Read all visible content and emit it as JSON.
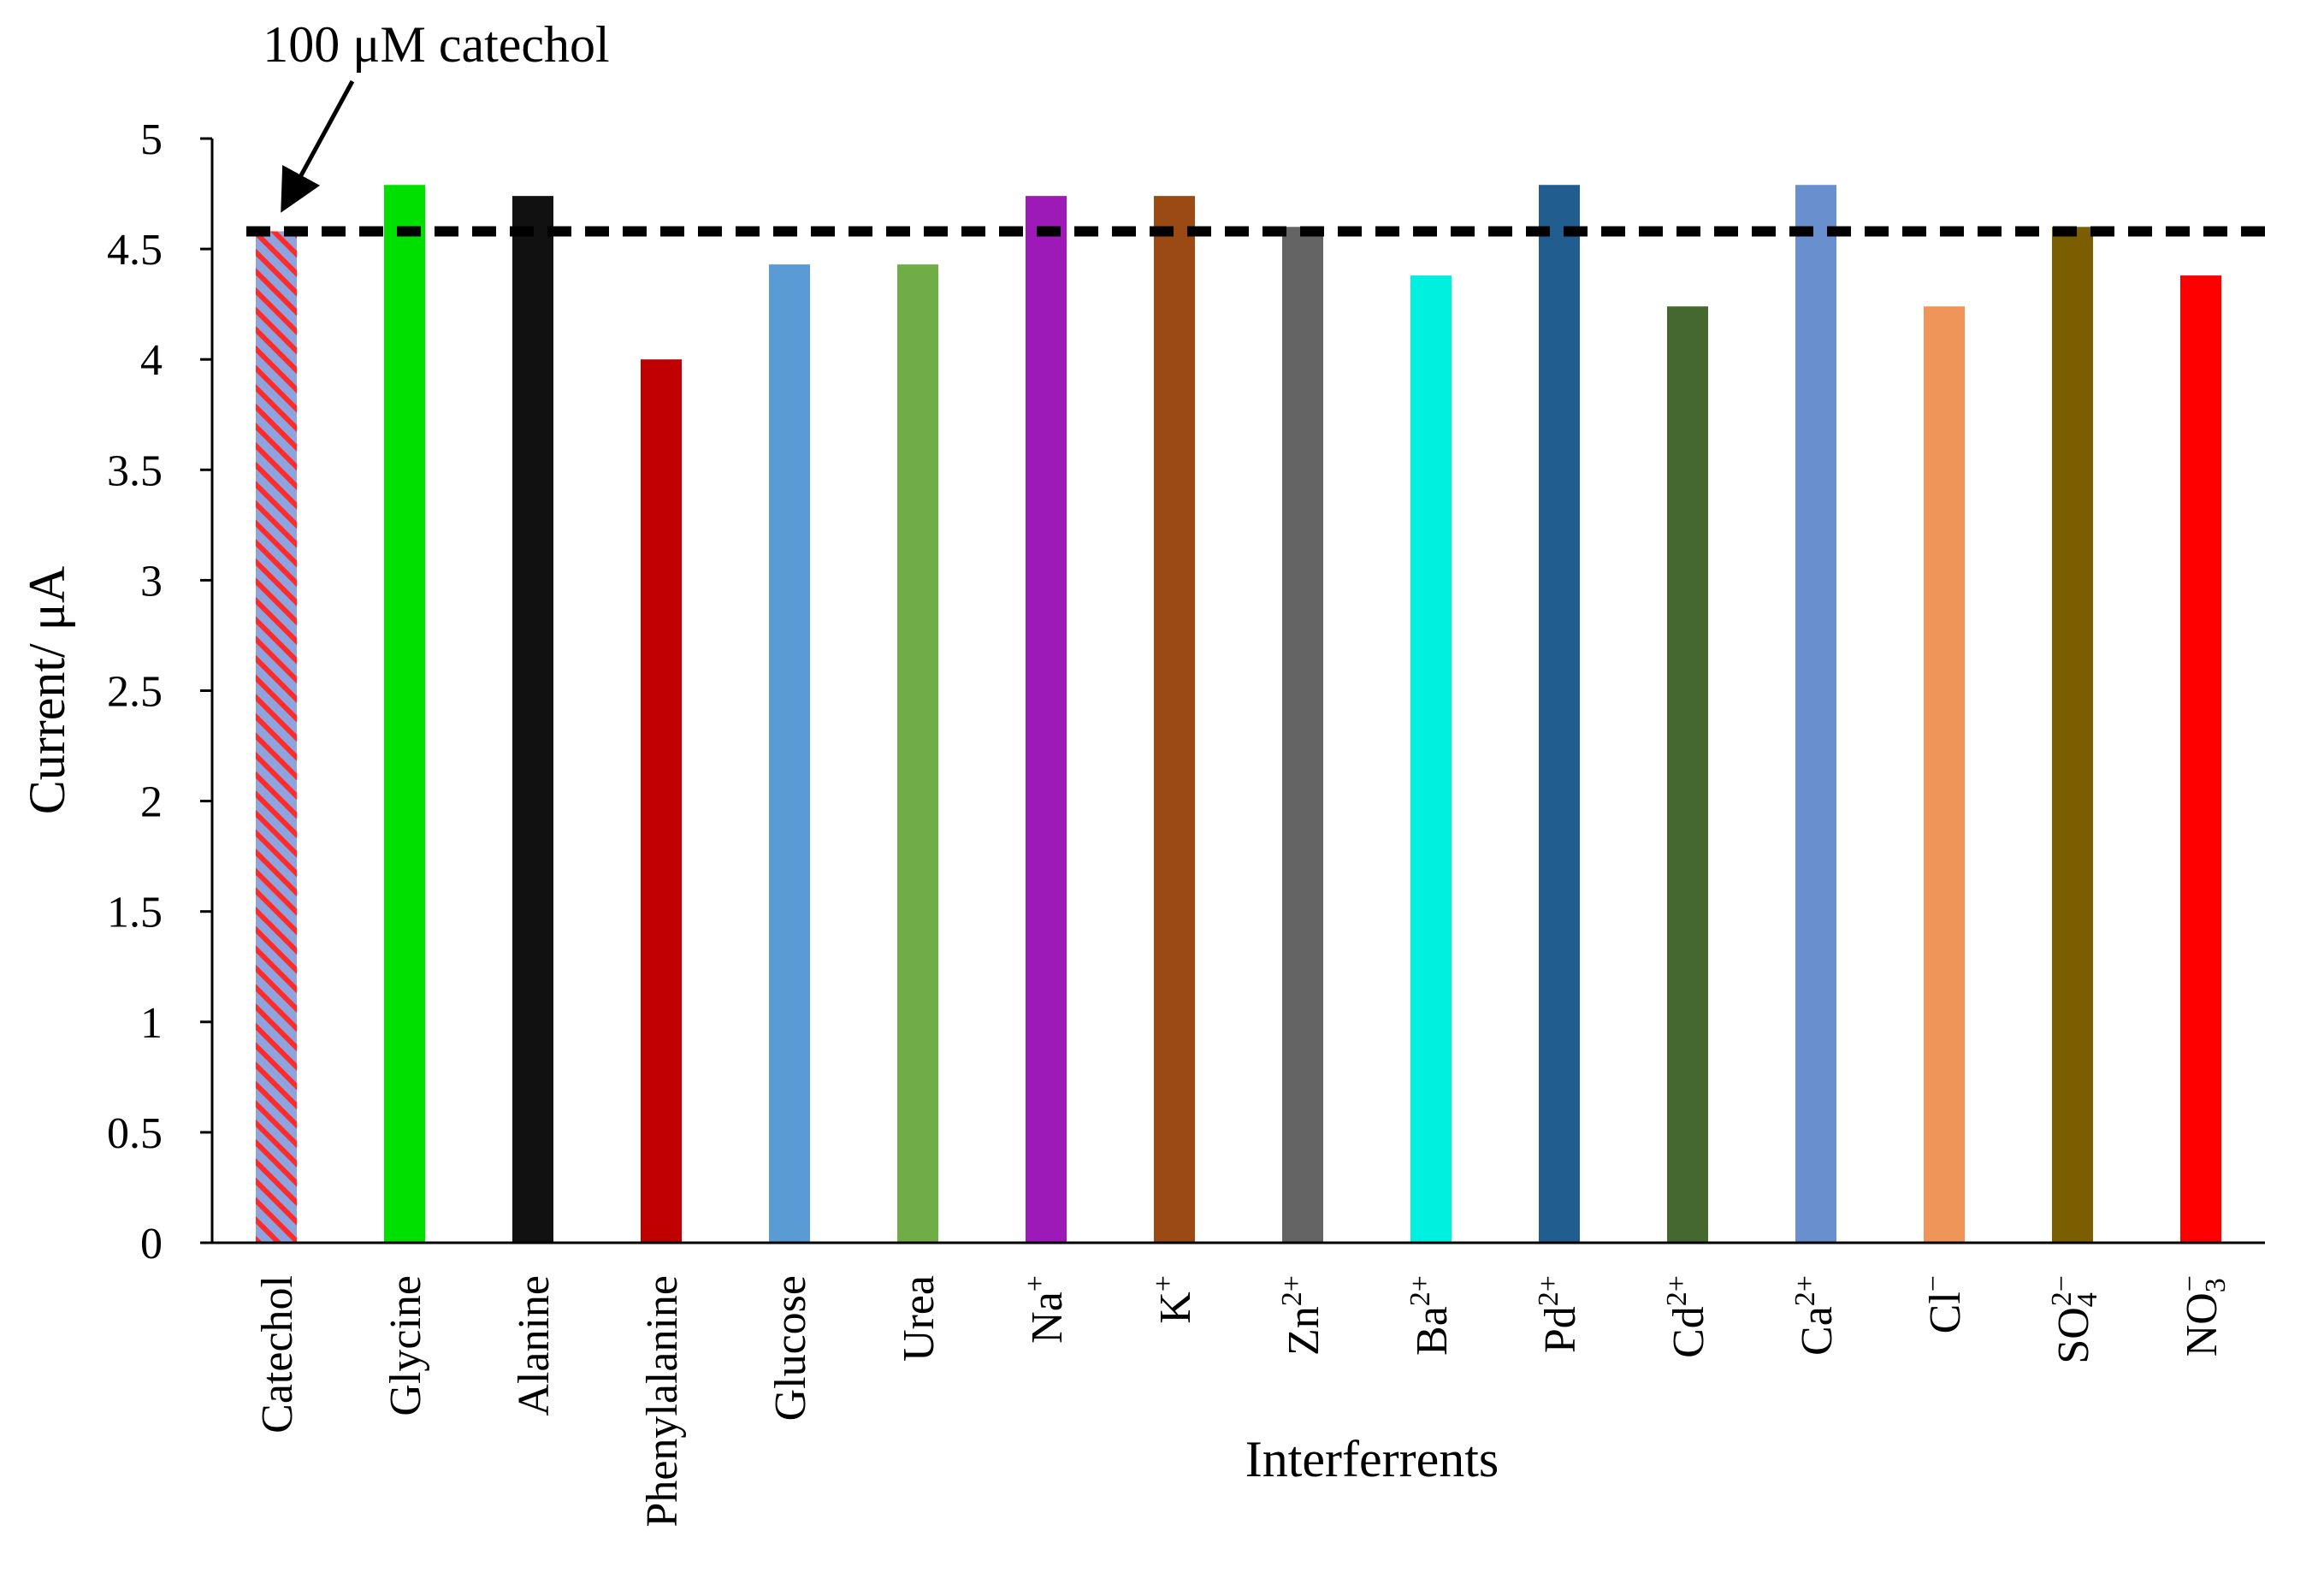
{
  "chart_data": {
    "type": "bar",
    "title": "",
    "xlabel": "Interferrents",
    "ylabel": "Current/ μA",
    "ylim": [
      0,
      5
    ],
    "yticks": [
      0,
      0.5,
      1,
      1.5,
      2,
      2.5,
      3,
      3.5,
      4,
      4.5,
      5
    ],
    "ytick_labels": [
      "0",
      "0.5",
      "1",
      "1.5",
      "2",
      "2.5",
      "3",
      "3.5",
      "4",
      "4.5",
      "5"
    ],
    "grid": false,
    "reference_line": {
      "value": 4.58,
      "style": "dashed",
      "color": "#000000"
    },
    "annotation": {
      "text": "100 μM catechol",
      "points_to": "Catechol"
    },
    "categories": [
      {
        "base": "Catechol"
      },
      {
        "base": "Glycine"
      },
      {
        "base": "Alanine"
      },
      {
        "base": "Phenylalanine"
      },
      {
        "base": "Glucose"
      },
      {
        "base": "Urea"
      },
      {
        "base": "Na",
        "sup": "+"
      },
      {
        "base": "K",
        "sup": "+"
      },
      {
        "base": "Zn",
        "sup": "2+"
      },
      {
        "base": "Ba",
        "sup": "2+"
      },
      {
        "base": "Pd",
        "sup": "2+"
      },
      {
        "base": "Cd",
        "sup": "2+"
      },
      {
        "base": "Ca",
        "sup": "2+"
      },
      {
        "base": "Cl",
        "sup": "−"
      },
      {
        "base": "SO",
        "sub": "4",
        "sup": "2−"
      },
      {
        "base": "NO",
        "sub": "3",
        "sup": "−"
      }
    ],
    "values": [
      4.58,
      4.79,
      4.74,
      4.0,
      4.43,
      4.43,
      4.74,
      4.74,
      4.6,
      4.38,
      4.79,
      4.24,
      4.79,
      4.24,
      4.6,
      4.38
    ],
    "colors": [
      "hatched",
      "#00e000",
      "#111111",
      "#c00000",
      "#5b9bd5",
      "#70ad47",
      "#9e1ab8",
      "#9a4a12",
      "#646464",
      "#00f0e0",
      "#215d8f",
      "#44682d",
      "#6a8fce",
      "#f0955a",
      "#7a5e00",
      "#ff0000"
    ],
    "hatch": {
      "background": "#8ea4de",
      "stripe": "#ff2a2a"
    }
  }
}
